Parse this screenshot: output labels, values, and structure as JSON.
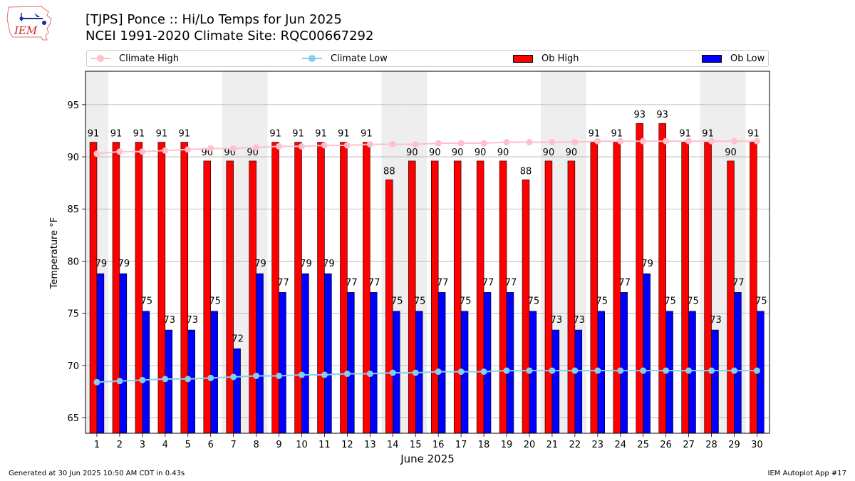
{
  "logo": {
    "text": "IEM"
  },
  "header": {
    "title_line1": "[TJPS] Ponce :: Hi/Lo Temps for Jun 2025",
    "title_line2": "NCEI 1991-2020 Climate Site: RQC00667292"
  },
  "legend": {
    "climate_high": "Climate High",
    "climate_low": "Climate Low",
    "ob_high": "Ob High",
    "ob_low": "Ob Low"
  },
  "colors": {
    "ob_high": "#ff0000",
    "ob_low": "#0000ff",
    "climate_high": "#ffc0cb",
    "climate_low": "#87ceeb",
    "weekend_shade": "#eeeeee",
    "grid": "#b0b0b0"
  },
  "footer": {
    "generated": "Generated at 30 Jun 2025 10:50 AM CDT in 0.43s",
    "app": "IEM Autoplot App #17"
  },
  "chart_data": {
    "type": "bar",
    "xlabel": "June 2025",
    "ylabel": "Temperature °F",
    "ylim": [
      63.5,
      98.2
    ],
    "yticks": [
      65,
      70,
      75,
      80,
      85,
      90,
      95
    ],
    "grid": "horizontal",
    "legend_position": "top",
    "categories": [
      "1",
      "2",
      "3",
      "4",
      "5",
      "6",
      "7",
      "8",
      "9",
      "10",
      "11",
      "12",
      "13",
      "14",
      "15",
      "16",
      "17",
      "18",
      "19",
      "20",
      "21",
      "22",
      "23",
      "24",
      "25",
      "26",
      "27",
      "28",
      "29",
      "30"
    ],
    "shaded_days": [
      1,
      7,
      8,
      14,
      15,
      21,
      22,
      28,
      29
    ],
    "series": [
      {
        "name": "Ob High",
        "kind": "bar",
        "values": [
          91.4,
          91.4,
          91.4,
          91.4,
          91.4,
          89.6,
          89.6,
          89.6,
          91.4,
          91.4,
          91.4,
          91.4,
          91.4,
          87.8,
          89.6,
          89.6,
          89.6,
          89.6,
          89.6,
          87.8,
          89.6,
          89.6,
          91.4,
          91.4,
          93.2,
          93.2,
          91.4,
          91.4,
          89.6,
          91.4
        ],
        "labels": [
          91,
          91,
          91,
          91,
          91,
          90,
          90,
          90,
          91,
          91,
          91,
          91,
          91,
          88,
          90,
          90,
          90,
          90,
          90,
          88,
          90,
          90,
          91,
          91,
          93,
          93,
          91,
          91,
          90,
          91
        ]
      },
      {
        "name": "Ob Low",
        "kind": "bar",
        "values": [
          78.8,
          78.8,
          75.2,
          73.4,
          73.4,
          75.2,
          71.6,
          78.8,
          77.0,
          78.8,
          78.8,
          77.0,
          77.0,
          75.2,
          75.2,
          77.0,
          75.2,
          77.0,
          77.0,
          75.2,
          73.4,
          73.4,
          75.2,
          77.0,
          78.8,
          75.2,
          75.2,
          73.4,
          77.0,
          75.2
        ],
        "labels": [
          79,
          79,
          75,
          73,
          73,
          75,
          72,
          79,
          77,
          79,
          79,
          77,
          77,
          75,
          75,
          77,
          75,
          77,
          77,
          75,
          73,
          73,
          75,
          77,
          79,
          75,
          75,
          73,
          77,
          75
        ]
      },
      {
        "name": "Climate High",
        "kind": "line",
        "values": [
          90.3,
          90.5,
          90.5,
          90.6,
          90.7,
          90.8,
          90.8,
          90.9,
          91.0,
          91.0,
          91.1,
          91.1,
          91.2,
          91.2,
          91.2,
          91.3,
          91.3,
          91.3,
          91.4,
          91.4,
          91.4,
          91.4,
          91.5,
          91.5,
          91.5,
          91.5,
          91.5,
          91.5,
          91.5,
          91.5
        ]
      },
      {
        "name": "Climate Low",
        "kind": "line",
        "values": [
          68.4,
          68.5,
          68.6,
          68.7,
          68.7,
          68.8,
          68.9,
          69.0,
          69.0,
          69.1,
          69.1,
          69.2,
          69.2,
          69.3,
          69.3,
          69.4,
          69.4,
          69.4,
          69.5,
          69.5,
          69.5,
          69.5,
          69.5,
          69.5,
          69.5,
          69.5,
          69.5,
          69.5,
          69.5,
          69.5
        ]
      }
    ]
  }
}
